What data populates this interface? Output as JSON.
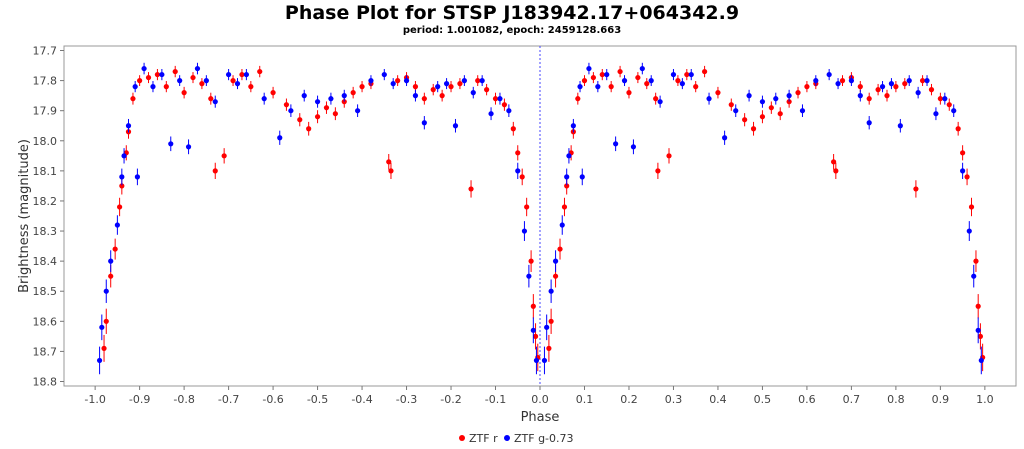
{
  "chart_data": {
    "type": "scatter",
    "title": "Phase Plot for STSP J183942.17+064342.9",
    "subtitle": "period: 1.001082, epoch: 2459128.663",
    "xlabel": "Phase",
    "ylabel": "Brightness (magnitude)",
    "xlim": [
      -1.07,
      1.07
    ],
    "ylim": [
      17.685,
      18.815
    ],
    "y_inverted": true,
    "x_ticks": [
      -1.0,
      -0.9,
      -0.8,
      -0.7,
      -0.6,
      -0.5,
      -0.4,
      -0.3,
      -0.2,
      -0.1,
      0.0,
      0.1,
      0.2,
      0.3,
      0.4,
      0.5,
      0.6,
      0.7,
      0.8,
      0.9,
      1.0
    ],
    "x_tick_labels": [
      "-1.0",
      "-0.9",
      "-0.8",
      "-0.7",
      "-0.6",
      "-0.5",
      "-0.4",
      "-0.3",
      "-0.2",
      "-0.1",
      "0.0",
      "0.1",
      "0.2",
      "0.3",
      "0.4",
      "0.5",
      "0.6",
      "0.7",
      "0.8",
      "0.9",
      "1.0"
    ],
    "y_ticks": [
      17.7,
      17.8,
      17.9,
      18.0,
      18.1,
      18.2,
      18.3,
      18.4,
      18.5,
      18.6,
      18.7,
      18.8
    ],
    "y_tick_labels": [
      "17.7",
      "17.8",
      "17.9",
      "18.0",
      "18.1",
      "18.2",
      "18.3",
      "18.4",
      "18.5",
      "18.6",
      "18.7",
      "18.8"
    ],
    "vertical_marker_x": 0.0,
    "grid": false,
    "legend_position": "bottom-center",
    "series": [
      {
        "name": "ZTF r",
        "color": "#ff0000",
        "points": [
          [
            -0.98,
            18.69
          ],
          [
            -0.975,
            18.6
          ],
          [
            -0.965,
            18.45
          ],
          [
            -0.955,
            18.36
          ],
          [
            -0.945,
            18.22
          ],
          [
            -0.94,
            18.15
          ],
          [
            -0.93,
            18.04
          ],
          [
            -0.925,
            17.97
          ],
          [
            -0.915,
            17.86
          ],
          [
            -0.9,
            17.8
          ],
          [
            -0.88,
            17.79
          ],
          [
            -0.86,
            17.78
          ],
          [
            -0.84,
            17.82
          ],
          [
            -0.82,
            17.77
          ],
          [
            -0.8,
            17.84
          ],
          [
            -0.78,
            17.79
          ],
          [
            -0.76,
            17.81
          ],
          [
            -0.74,
            17.86
          ],
          [
            -0.73,
            18.1
          ],
          [
            -0.71,
            18.05
          ],
          [
            -0.69,
            17.8
          ],
          [
            -0.67,
            17.78
          ],
          [
            -0.65,
            17.82
          ],
          [
            -0.63,
            17.77
          ],
          [
            -0.6,
            17.84
          ],
          [
            -0.57,
            17.88
          ],
          [
            -0.54,
            17.93
          ],
          [
            -0.52,
            17.96
          ],
          [
            -0.5,
            17.92
          ],
          [
            -0.48,
            17.89
          ],
          [
            -0.46,
            17.91
          ],
          [
            -0.44,
            17.87
          ],
          [
            -0.42,
            17.84
          ],
          [
            -0.4,
            17.82
          ],
          [
            -0.38,
            17.81
          ],
          [
            -0.34,
            18.07
          ],
          [
            -0.335,
            18.1
          ],
          [
            -0.32,
            17.8
          ],
          [
            -0.3,
            17.79
          ],
          [
            -0.28,
            17.82
          ],
          [
            -0.26,
            17.86
          ],
          [
            -0.24,
            17.83
          ],
          [
            -0.22,
            17.85
          ],
          [
            -0.2,
            17.82
          ],
          [
            -0.18,
            17.81
          ],
          [
            -0.155,
            18.16
          ],
          [
            -0.14,
            17.8
          ],
          [
            -0.12,
            17.83
          ],
          [
            -0.1,
            17.86
          ],
          [
            -0.08,
            17.88
          ],
          [
            -0.06,
            17.96
          ],
          [
            -0.05,
            18.04
          ],
          [
            -0.04,
            18.12
          ],
          [
            -0.03,
            18.22
          ],
          [
            -0.02,
            18.4
          ],
          [
            -0.015,
            18.55
          ],
          [
            -0.01,
            18.65
          ],
          [
            -0.005,
            18.72
          ],
          [
            0.02,
            18.69
          ],
          [
            0.025,
            18.6
          ],
          [
            0.035,
            18.45
          ],
          [
            0.045,
            18.36
          ],
          [
            0.055,
            18.22
          ],
          [
            0.06,
            18.15
          ],
          [
            0.07,
            18.04
          ],
          [
            0.075,
            17.97
          ],
          [
            0.085,
            17.86
          ],
          [
            0.1,
            17.8
          ],
          [
            0.12,
            17.79
          ],
          [
            0.14,
            17.78
          ],
          [
            0.16,
            17.82
          ],
          [
            0.18,
            17.77
          ],
          [
            0.2,
            17.84
          ],
          [
            0.22,
            17.79
          ],
          [
            0.24,
            17.81
          ],
          [
            0.26,
            17.86
          ],
          [
            0.265,
            18.1
          ],
          [
            0.29,
            18.05
          ],
          [
            0.31,
            17.8
          ],
          [
            0.33,
            17.78
          ],
          [
            0.35,
            17.82
          ],
          [
            0.37,
            17.77
          ],
          [
            0.4,
            17.84
          ],
          [
            0.43,
            17.88
          ],
          [
            0.46,
            17.93
          ],
          [
            0.48,
            17.96
          ],
          [
            0.5,
            17.92
          ],
          [
            0.52,
            17.89
          ],
          [
            0.54,
            17.91
          ],
          [
            0.56,
            17.87
          ],
          [
            0.58,
            17.84
          ],
          [
            0.6,
            17.82
          ],
          [
            0.62,
            17.81
          ],
          [
            0.66,
            18.07
          ],
          [
            0.665,
            18.1
          ],
          [
            0.68,
            17.8
          ],
          [
            0.7,
            17.79
          ],
          [
            0.72,
            17.82
          ],
          [
            0.74,
            17.86
          ],
          [
            0.76,
            17.83
          ],
          [
            0.78,
            17.85
          ],
          [
            0.8,
            17.82
          ],
          [
            0.82,
            17.81
          ],
          [
            0.845,
            18.16
          ],
          [
            0.86,
            17.8
          ],
          [
            0.88,
            17.83
          ],
          [
            0.9,
            17.86
          ],
          [
            0.92,
            17.88
          ],
          [
            0.94,
            17.96
          ],
          [
            0.95,
            18.04
          ],
          [
            0.96,
            18.12
          ],
          [
            0.97,
            18.22
          ],
          [
            0.98,
            18.4
          ],
          [
            0.985,
            18.55
          ],
          [
            0.99,
            18.65
          ],
          [
            0.995,
            18.72
          ]
        ]
      },
      {
        "name": "ZTF g-0.73",
        "color": "#0000ff",
        "points": [
          [
            -0.99,
            18.73
          ],
          [
            -0.985,
            18.62
          ],
          [
            -0.975,
            18.5
          ],
          [
            -0.965,
            18.4
          ],
          [
            -0.95,
            18.28
          ],
          [
            -0.94,
            18.12
          ],
          [
            -0.935,
            18.05
          ],
          [
            -0.925,
            17.95
          ],
          [
            -0.91,
            17.82
          ],
          [
            -0.905,
            18.12
          ],
          [
            -0.89,
            17.76
          ],
          [
            -0.87,
            17.82
          ],
          [
            -0.85,
            17.78
          ],
          [
            -0.83,
            18.01
          ],
          [
            -0.81,
            17.8
          ],
          [
            -0.79,
            18.02
          ],
          [
            -0.77,
            17.76
          ],
          [
            -0.75,
            17.8
          ],
          [
            -0.73,
            17.87
          ],
          [
            -0.7,
            17.78
          ],
          [
            -0.68,
            17.81
          ],
          [
            -0.66,
            17.78
          ],
          [
            -0.62,
            17.86
          ],
          [
            -0.585,
            17.99
          ],
          [
            -0.56,
            17.9
          ],
          [
            -0.53,
            17.85
          ],
          [
            -0.5,
            17.87
          ],
          [
            -0.47,
            17.86
          ],
          [
            -0.44,
            17.85
          ],
          [
            -0.41,
            17.9
          ],
          [
            -0.38,
            17.8
          ],
          [
            -0.35,
            17.78
          ],
          [
            -0.33,
            17.81
          ],
          [
            -0.3,
            17.8
          ],
          [
            -0.28,
            17.85
          ],
          [
            -0.26,
            17.94
          ],
          [
            -0.23,
            17.82
          ],
          [
            -0.21,
            17.81
          ],
          [
            -0.19,
            17.95
          ],
          [
            -0.17,
            17.8
          ],
          [
            -0.15,
            17.84
          ],
          [
            -0.13,
            17.8
          ],
          [
            -0.11,
            17.91
          ],
          [
            -0.09,
            17.86
          ],
          [
            -0.07,
            17.9
          ],
          [
            -0.05,
            18.1
          ],
          [
            -0.035,
            18.3
          ],
          [
            -0.025,
            18.45
          ],
          [
            -0.015,
            18.63
          ],
          [
            -0.008,
            18.73
          ],
          [
            0.01,
            18.73
          ],
          [
            0.015,
            18.62
          ],
          [
            0.025,
            18.5
          ],
          [
            0.035,
            18.4
          ],
          [
            0.05,
            18.28
          ],
          [
            0.06,
            18.12
          ],
          [
            0.065,
            18.05
          ],
          [
            0.075,
            17.95
          ],
          [
            0.09,
            17.82
          ],
          [
            0.095,
            18.12
          ],
          [
            0.11,
            17.76
          ],
          [
            0.13,
            17.82
          ],
          [
            0.15,
            17.78
          ],
          [
            0.17,
            18.01
          ],
          [
            0.19,
            17.8
          ],
          [
            0.21,
            18.02
          ],
          [
            0.23,
            17.76
          ],
          [
            0.25,
            17.8
          ],
          [
            0.27,
            17.87
          ],
          [
            0.3,
            17.78
          ],
          [
            0.32,
            17.81
          ],
          [
            0.34,
            17.78
          ],
          [
            0.38,
            17.86
          ],
          [
            0.415,
            17.99
          ],
          [
            0.44,
            17.9
          ],
          [
            0.47,
            17.85
          ],
          [
            0.5,
            17.87
          ],
          [
            0.53,
            17.86
          ],
          [
            0.56,
            17.85
          ],
          [
            0.59,
            17.9
          ],
          [
            0.62,
            17.8
          ],
          [
            0.65,
            17.78
          ],
          [
            0.67,
            17.81
          ],
          [
            0.7,
            17.8
          ],
          [
            0.72,
            17.85
          ],
          [
            0.74,
            17.94
          ],
          [
            0.77,
            17.82
          ],
          [
            0.79,
            17.81
          ],
          [
            0.81,
            17.95
          ],
          [
            0.83,
            17.8
          ],
          [
            0.85,
            17.84
          ],
          [
            0.87,
            17.8
          ],
          [
            0.89,
            17.91
          ],
          [
            0.91,
            17.86
          ],
          [
            0.93,
            17.9
          ],
          [
            0.95,
            18.1
          ],
          [
            0.965,
            18.3
          ],
          [
            0.975,
            18.45
          ],
          [
            0.985,
            18.63
          ],
          [
            0.992,
            18.73
          ]
        ]
      }
    ]
  }
}
